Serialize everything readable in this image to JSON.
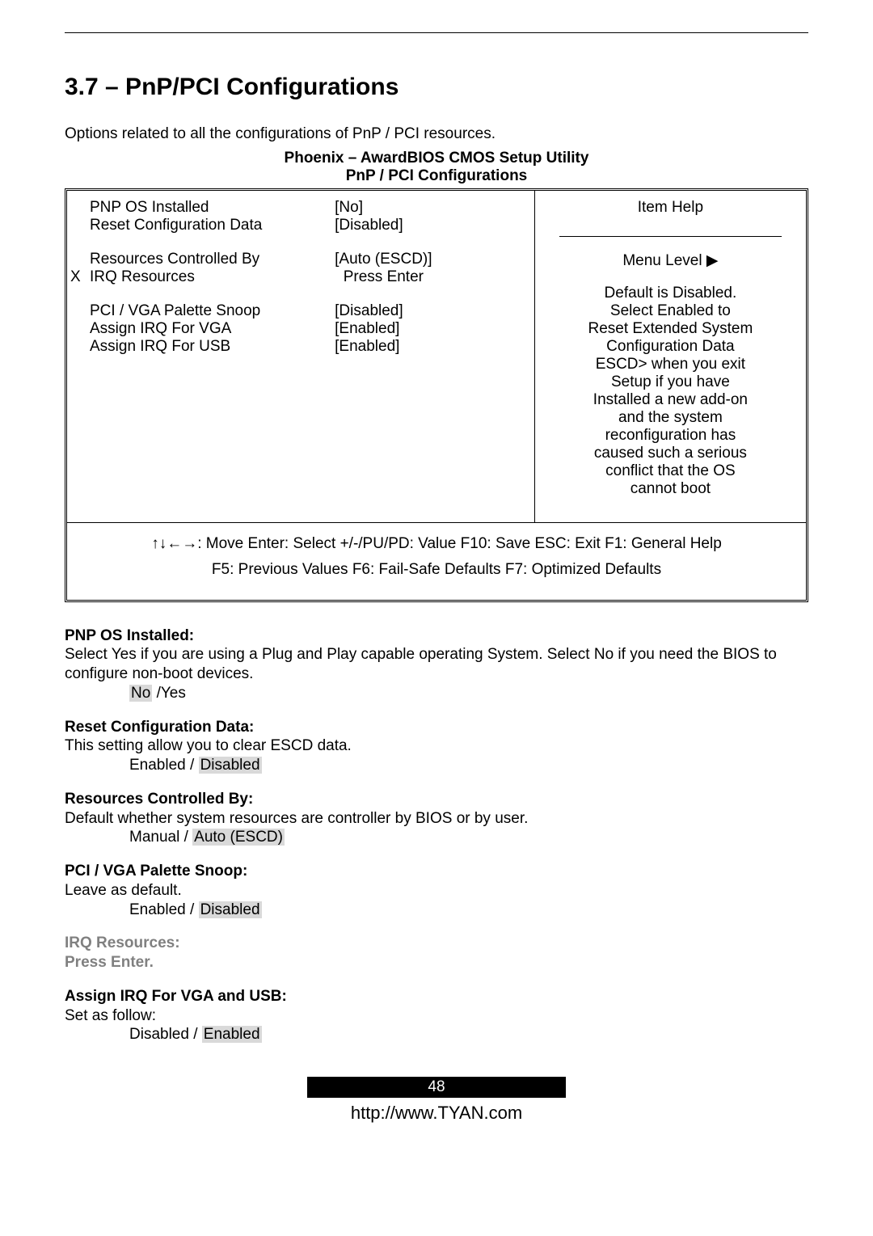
{
  "section_title": "3.7 – PnP/PCI Configurations",
  "intro": "Options related to all the configurations of PnP / PCI resources.",
  "bios_header1": "Phoenix – AwardBIOS CMOS Setup Utility",
  "bios_header2": "PnP / PCI Configurations",
  "bios_items": {
    "r1_label": "PNP OS Installed",
    "r1_value": "[No]",
    "r2_label": "Reset Configuration Data",
    "r2_value": "[Disabled]",
    "r3_label": "Resources Controlled By",
    "r3_value": "[Auto (ESCD)]",
    "r4_prefix": "X",
    "r4_label": "IRQ   Resources",
    "r4_value": "Press Enter",
    "r5_label": "PCI / VGA Palette Snoop",
    "r5_value": "[Disabled]",
    "r6_label": "Assign IRQ For VGA",
    "r6_value": "[Enabled]",
    "r7_label": "Assign IRQ For USB",
    "r7_value": "[Enabled]"
  },
  "help": {
    "title": "Item Help",
    "menu_level": "Menu Level   ▶",
    "body": "Default is Disabled.\nSelect Enabled to\nReset Extended System\nConfiguration Data\nESCD> when you exit\nSetup if you have\nInstalled a new add-on\nand the system\nreconfiguration has\ncaused such a serious\nconflict that the OS\ncannot boot"
  },
  "footer": {
    "line1": "↑↓←→: Move  Enter: Select  +/-/PU/PD: Value  F10: Save  ESC: Exit  F1: General Help",
    "line2": "F5: Previous Values   F6: Fail-Safe Defaults   F7: Optimized Defaults"
  },
  "descriptions": [
    {
      "title": "PNP OS Installed:",
      "body": "Select Yes if you are using a Plug and Play capable operating System. Select No if you need the BIOS to configure non-boot devices.",
      "options_plain": " /Yes",
      "options_hl": "No",
      "hl_first": true
    },
    {
      "title": "Reset Configuration Data:",
      "body": "This setting allow you to clear ESCD data.",
      "options_plain": "Enabled / ",
      "options_hl": "Disabled",
      "hl_first": false
    },
    {
      "title": "Resources Controlled By:",
      "body": "Default whether system resources are controller by BIOS or by user.",
      "options_plain": "Manual / ",
      "options_hl": "Auto (ESCD)",
      "hl_first": false
    },
    {
      "title": "PCI / VGA Palette Snoop:",
      "body": "Leave as default.",
      "options_plain": "Enabled / ",
      "options_hl": "Disabled",
      "hl_first": false
    },
    {
      "title_grey": "IRQ   Resources:",
      "body_grey": "Press Enter."
    },
    {
      "title": "Assign IRQ For VGA and USB:",
      "body": "Set as follow:",
      "options_plain": "Disabled / ",
      "options_hl": "Enabled",
      "hl_first": false
    }
  ],
  "page_number": "48",
  "url": "http://www.TYAN.com"
}
